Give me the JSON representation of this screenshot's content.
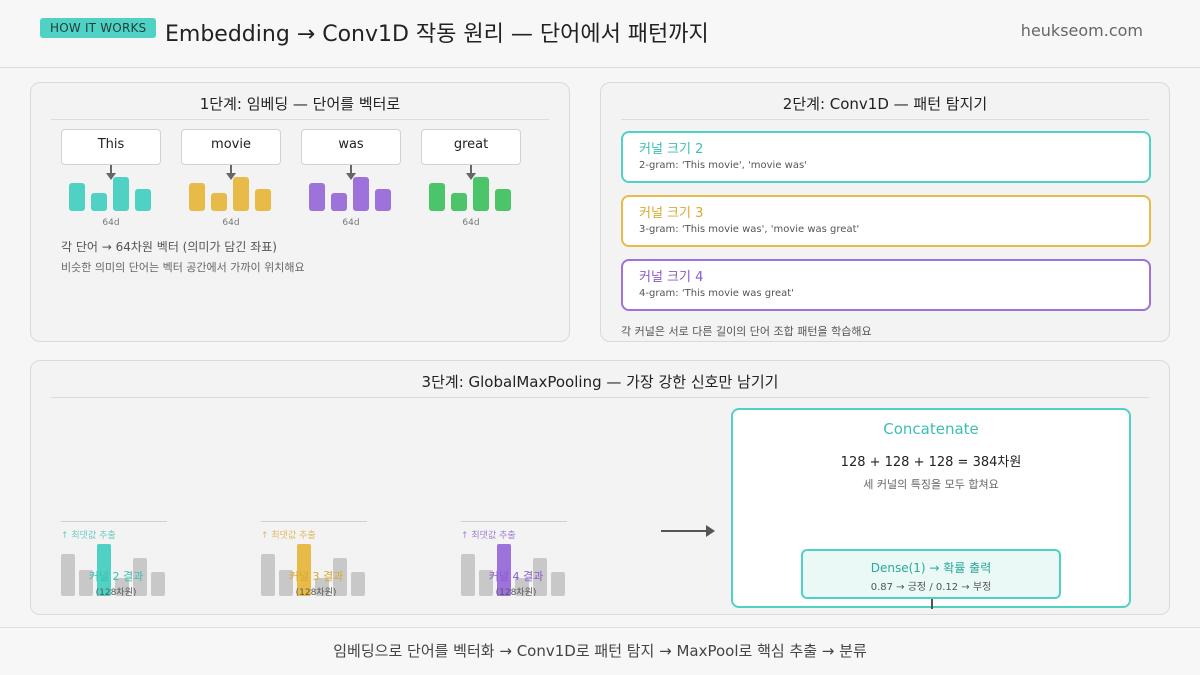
{
  "header": {
    "badge": "HOW IT WORKS",
    "title": "Embedding → Conv1D 작동 원리 — 단어에서 패턴까지",
    "site": "heukseom.com"
  },
  "colors": {
    "teal": "#4fd2c4",
    "yellow": "#e8bb48",
    "purple": "#9d72da",
    "green": "#4cc46a",
    "gray": "#c8c8c8"
  },
  "step1": {
    "title": "1단계: 임베딩 — 단어를 벡터로",
    "words": [
      {
        "text": "This",
        "dim": "64d",
        "color": "#4fd2c4"
      },
      {
        "text": "movie",
        "dim": "64d",
        "color": "#e8bb48"
      },
      {
        "text": "was",
        "dim": "64d",
        "color": "#9d72da"
      },
      {
        "text": "great",
        "dim": "64d",
        "color": "#4cc46a"
      }
    ],
    "note1": "각 단어 → 64차원 벡터 (의미가 담긴 좌표)",
    "note2": "비슷한 의미의 단어는 벡터 공간에서 가까이 위치해요"
  },
  "step2": {
    "title": "2단계: Conv1D — 패턴 탐지기",
    "kernels": [
      {
        "title": "커널 크기 2",
        "desc": "2-gram: 'This movie', 'movie was'",
        "color": "#4fd2c4"
      },
      {
        "title": "커널 크기 3",
        "desc": "3-gram: 'This movie was', 'movie was great'",
        "color": "#e8bb48"
      },
      {
        "title": "커널 크기 4",
        "desc": "4-gram: 'This movie was great'",
        "color": "#9d72da"
      }
    ],
    "note": "각 커널은 서로 다른 길이의 단어 조합 패턴을 학습해요"
  },
  "step3": {
    "title": "3단계: GlobalMaxPooling — 가장 강한 신호만 남기기",
    "groups": [
      {
        "label": "커널 2 결과",
        "sub": "(128차원)",
        "tag": "↑ 최댓값 추출",
        "color": "#4fd2c4"
      },
      {
        "label": "커널 3 결과",
        "sub": "(128차원)",
        "tag": "↑ 최댓값 추출",
        "color": "#e8bb48"
      },
      {
        "label": "커널 4 결과",
        "sub": "(128차원)",
        "tag": "↑ 최댓값 추출",
        "color": "#9d72da"
      }
    ],
    "concat": {
      "title": "Concatenate",
      "formula": "128 + 128 + 128 = 384차원",
      "sub": "세 커널의 특징을 모두 합쳐요"
    },
    "dense": {
      "title": "Dense(1) → 확률 출력",
      "detail": "0.87 → 긍정  /  0.12 → 부정"
    }
  },
  "footer": "임베딩으로 단어를 벡터화 → Conv1D로 패턴 탐지 → MaxPool로 핵심 추출 → 분류"
}
